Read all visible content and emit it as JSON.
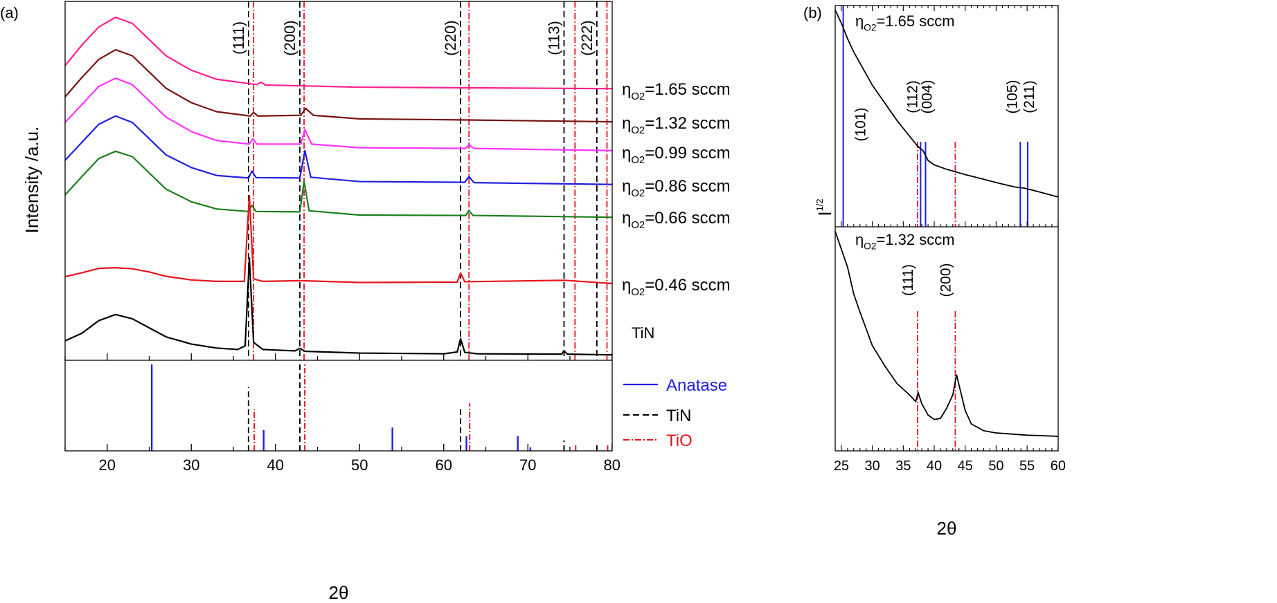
{
  "colors": {
    "anatase": "#1f1fe0",
    "tin": "#000000",
    "tio": "#e8141c"
  },
  "chart_data": [
    {
      "panel_label": "(a)",
      "type": "line",
      "xlabel": "2θ",
      "ylabel": "Intensity /a.u.",
      "xlim": [
        15,
        80
      ],
      "xticks": [
        20,
        30,
        40,
        50,
        60,
        70,
        80
      ],
      "series": [
        {
          "name_parts": {
            "prefix": "η",
            "sub": "O2",
            "suffix": "=1.65 sccm"
          },
          "color": "#ff1f8f",
          "points": [
            [
              15,
              81.8
            ],
            [
              17,
              87.5
            ],
            [
              19,
              92.5
            ],
            [
              21,
              95.2
            ],
            [
              23,
              93.5
            ],
            [
              25,
              89
            ],
            [
              27,
              84.5
            ],
            [
              30,
              80.5
            ],
            [
              33,
              78
            ],
            [
              37.8,
              76.5
            ],
            [
              38.3,
              77.2
            ],
            [
              38.8,
              76.4
            ],
            [
              50,
              75.8
            ],
            [
              80,
              75.4
            ]
          ]
        },
        {
          "name_parts": {
            "prefix": "η",
            "sub": "O2",
            "suffix": "=1.32 sccm"
          },
          "color": "#7a1010",
          "points": [
            [
              15,
              73.1
            ],
            [
              17,
              78.5
            ],
            [
              19,
              83.5
            ],
            [
              21,
              86.2
            ],
            [
              23,
              84.5
            ],
            [
              25,
              80
            ],
            [
              27,
              75.5
            ],
            [
              30,
              71.5
            ],
            [
              33,
              69
            ],
            [
              37,
              67.8
            ],
            [
              37.4,
              68.8
            ],
            [
              37.9,
              67.8
            ],
            [
              43,
              68
            ],
            [
              43.6,
              69.9
            ],
            [
              44.5,
              68
            ],
            [
              50,
              67
            ],
            [
              63,
              66.7
            ],
            [
              80,
              66.2
            ]
          ]
        },
        {
          "name_parts": {
            "prefix": "η",
            "sub": "O2",
            "suffix": "=0.99 sccm"
          },
          "color": "#ff33ff",
          "points": [
            [
              15,
              66
            ],
            [
              17,
              71
            ],
            [
              19,
              76
            ],
            [
              21,
              78.3
            ],
            [
              23,
              76.5
            ],
            [
              25,
              72
            ],
            [
              27,
              67.5
            ],
            [
              30,
              63.5
            ],
            [
              33,
              61
            ],
            [
              36.9,
              60
            ],
            [
              37.3,
              61.5
            ],
            [
              37.8,
              60
            ],
            [
              43,
              60
            ],
            [
              43.5,
              64
            ],
            [
              44.3,
              60
            ],
            [
              50,
              59
            ],
            [
              62.6,
              58.8
            ],
            [
              63,
              59.8
            ],
            [
              63.6,
              58.8
            ],
            [
              80,
              58.2
            ]
          ]
        },
        {
          "name_parts": {
            "prefix": "η",
            "sub": "O2",
            "suffix": "=0.86 sccm"
          },
          "color": "#1f1fe0",
          "points": [
            [
              15,
              55.5
            ],
            [
              17,
              60.5
            ],
            [
              19,
              65.5
            ],
            [
              21,
              67.8
            ],
            [
              23,
              66
            ],
            [
              25,
              61.5
            ],
            [
              27,
              57
            ],
            [
              30,
              53.5
            ],
            [
              33,
              51.3
            ],
            [
              36.8,
              50.6
            ],
            [
              37.2,
              52.5
            ],
            [
              37.7,
              50.7
            ],
            [
              42.9,
              50.6
            ],
            [
              43.5,
              58.2
            ],
            [
              44.2,
              50.8
            ],
            [
              50,
              49.6
            ],
            [
              62.5,
              49.4
            ],
            [
              63,
              51
            ],
            [
              63.6,
              49.3
            ],
            [
              80,
              48.8
            ]
          ]
        },
        {
          "name_parts": {
            "prefix": "η",
            "sub": "O2",
            "suffix": "=0.66 sccm"
          },
          "color": "#1a7f1a",
          "points": [
            [
              15,
              45.9
            ],
            [
              17,
              51
            ],
            [
              19,
              56
            ],
            [
              21,
              58
            ],
            [
              23,
              56.5
            ],
            [
              25,
              52
            ],
            [
              27,
              47.5
            ],
            [
              30,
              44
            ],
            [
              33,
              42
            ],
            [
              36.8,
              41.3
            ],
            [
              37.2,
              43
            ],
            [
              37.7,
              41.3
            ],
            [
              42.9,
              41.2
            ],
            [
              43.4,
              49.7
            ],
            [
              44,
              41.5
            ],
            [
              50,
              40.3
            ],
            [
              62.6,
              40.2
            ],
            [
              63,
              41.5
            ],
            [
              63.5,
              40.2
            ],
            [
              80,
              39.7
            ]
          ]
        },
        {
          "name_parts": {
            "prefix": "η",
            "sub": "O2",
            "suffix": "=0.46 sccm"
          },
          "color": "#e8141c",
          "points": [
            [
              15,
              23.2
            ],
            [
              17,
              24.3
            ],
            [
              19,
              25.5
            ],
            [
              21,
              25.7
            ],
            [
              23,
              25.4
            ],
            [
              25,
              24.5
            ],
            [
              27,
              23.3
            ],
            [
              30,
              22.3
            ],
            [
              33,
              21.9
            ],
            [
              36.3,
              21.9
            ],
            [
              36.9,
              45.7
            ],
            [
              37.4,
              22.6
            ],
            [
              38.5,
              21.9
            ],
            [
              42.9,
              22.1
            ],
            [
              50,
              21.6
            ],
            [
              61.6,
              21.7
            ],
            [
              62,
              24.2
            ],
            [
              62.5,
              21.8
            ],
            [
              74.3,
              22.2
            ],
            [
              80,
              21.3
            ]
          ]
        },
        {
          "name": "TiN",
          "color": "#000000",
          "points": [
            [
              15,
              5.4
            ],
            [
              17,
              7.5
            ],
            [
              19,
              11
            ],
            [
              21,
              12.7
            ],
            [
              23,
              11.5
            ],
            [
              25,
              9
            ],
            [
              27,
              6.5
            ],
            [
              30,
              4.5
            ],
            [
              33,
              3.4
            ],
            [
              35.5,
              3
            ],
            [
              36.4,
              4
            ],
            [
              36.9,
              28.4
            ],
            [
              37.4,
              5
            ],
            [
              38.5,
              3
            ],
            [
              42.3,
              2.6
            ],
            [
              42.9,
              3.3
            ],
            [
              43.5,
              2.5
            ],
            [
              50,
              2
            ],
            [
              60,
              1.8
            ],
            [
              61.6,
              2.3
            ],
            [
              62,
              6
            ],
            [
              62.5,
              2.2
            ],
            [
              64,
              1.8
            ],
            [
              74,
              1.7
            ],
            [
              74.3,
              2.6
            ],
            [
              74.7,
              1.7
            ],
            [
              80,
              1.5
            ]
          ]
        }
      ],
      "reference_lines": {
        "TiN": [
          36.8,
          42.9,
          62.0,
          74.3,
          78.2
        ],
        "TiO": [
          37.4,
          43.4,
          63.0,
          75.6,
          79.4
        ]
      },
      "peak_labels": [
        {
          "text": "(111)",
          "x": 36.8
        },
        {
          "text": "(200)",
          "x": 42.9
        },
        {
          "text": "(220)",
          "x": 62.0
        },
        {
          "text": "(113)",
          "x": 74.3
        },
        {
          "text": "(222)",
          "x": 78.2
        }
      ],
      "reference_patterns": {
        "legend": [
          "Anatase",
          "TiN",
          "TiO"
        ],
        "Anatase": [
          [
            25.3,
            100
          ],
          [
            38.6,
            24
          ],
          [
            53.9,
            27
          ],
          [
            62.7,
            17
          ],
          [
            68.8,
            17
          ],
          [
            70.3,
            4
          ]
        ],
        "TiN": [
          [
            36.8,
            74
          ],
          [
            42.9,
            100
          ],
          [
            62.0,
            48
          ],
          [
            74.3,
            12
          ],
          [
            78.2,
            9
          ]
        ],
        "TiO": [
          [
            37.4,
            48
          ],
          [
            43.4,
            100
          ],
          [
            63.0,
            55
          ],
          [
            75.6,
            8
          ],
          [
            79.4,
            7
          ]
        ]
      }
    },
    {
      "panel_label": "(b)",
      "type": "line",
      "xlabel": "2θ",
      "ylabel": "I",
      "ylabel_sup": "1/2",
      "xlim": [
        24,
        60
      ],
      "xticks": [
        25,
        30,
        35,
        40,
        45,
        50,
        55,
        60
      ],
      "panels": [
        {
          "label_parts": {
            "prefix": "η",
            "sub": "O2",
            "suffix": "=1.65 sccm"
          },
          "points": [
            [
              24,
              98
            ],
            [
              25,
              92
            ],
            [
              26,
              85
            ],
            [
              27,
              79
            ],
            [
              28,
              74
            ],
            [
              30,
              64
            ],
            [
              32,
              56
            ],
            [
              34,
              48
            ],
            [
              36,
              41
            ],
            [
              37.3,
              36.5
            ],
            [
              38.2,
              34.4
            ],
            [
              39,
              30
            ],
            [
              40,
              28
            ],
            [
              42,
              26
            ],
            [
              45,
              23.6
            ],
            [
              48,
              21.5
            ],
            [
              50,
              20
            ],
            [
              53,
              18
            ],
            [
              54.5,
              17.5
            ],
            [
              56,
              16.5
            ],
            [
              58,
              15
            ],
            [
              60,
              13.5
            ]
          ],
          "anatase_lines": [
            25.3,
            37.8,
            38.6,
            53.9,
            55.1
          ],
          "tio_lines": [
            37.3,
            43.4
          ],
          "peak_labels": [
            {
              "text": "(101)",
              "x": 25.3
            },
            {
              "text": "(112)",
              "x": 37.8
            },
            {
              "text": "(004)",
              "x": 38.6
            },
            {
              "text": "(105)",
              "x": 53.9
            },
            {
              "text": "(211)",
              "x": 55.1
            }
          ]
        },
        {
          "label_parts": {
            "prefix": "η",
            "sub": "O2",
            "suffix": "=1.32 sccm"
          },
          "points": [
            [
              24,
              98
            ],
            [
              25,
              90
            ],
            [
              26,
              82
            ],
            [
              27,
              70
            ],
            [
              28,
              62
            ],
            [
              30,
              47
            ],
            [
              32,
              38
            ],
            [
              34,
              30
            ],
            [
              36,
              25
            ],
            [
              37,
              22
            ],
            [
              37.4,
              26
            ],
            [
              38,
              21
            ],
            [
              39,
              16
            ],
            [
              40,
              14
            ],
            [
              41,
              14.5
            ],
            [
              42,
              19
            ],
            [
              43,
              25
            ],
            [
              43.6,
              34
            ],
            [
              44.3,
              26
            ],
            [
              45,
              18
            ],
            [
              46,
              12
            ],
            [
              48,
              9
            ],
            [
              50,
              8
            ],
            [
              55,
              7
            ],
            [
              60,
              6.5
            ]
          ],
          "tio_lines": [
            37.3,
            43.4
          ],
          "peak_labels": [
            {
              "text": "(111)",
              "x": 37.3
            },
            {
              "text": "(200)",
              "x": 43.4
            }
          ]
        }
      ]
    }
  ]
}
